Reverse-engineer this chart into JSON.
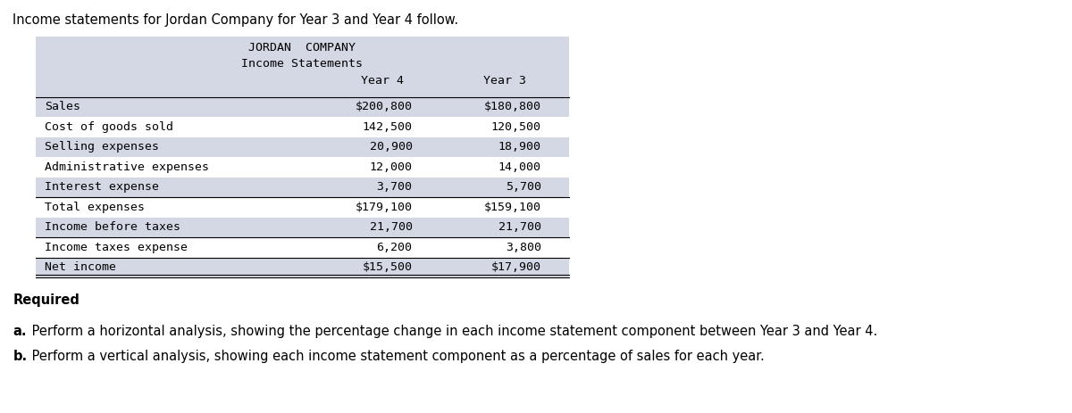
{
  "intro_text": "Income statements for Jordan Company for Year 3 and Year 4 follow.",
  "company_title": "JORDAN  COMPANY",
  "subtitle": "Income Statements",
  "col_headers": [
    "Year 4",
    "Year 3"
  ],
  "row_labels": [
    "Sales",
    "Cost of goods sold",
    "Selling expenses",
    "Administrative expenses",
    "Interest expense",
    "Total expenses",
    "Income before taxes",
    "Income taxes expense",
    "Net income"
  ],
  "year4_values": [
    "$200,800",
    "142,500",
    "20,900",
    "12,000",
    "3,700",
    "$179,100",
    "21,700",
    "6,200",
    "$15,500"
  ],
  "year3_values": [
    "$180,800",
    "120,500",
    "18,900",
    "14,000",
    "5,700",
    "$159,100",
    "21,700",
    "3,800",
    "$17,900"
  ],
  "required_text": "Required",
  "part_a_bold": "a.",
  "part_a_rest": " Perform a horizontal analysis, showing the percentage change in each income statement component between Year 3 and Year 4.",
  "part_b_bold": "b.",
  "part_b_rest": " Perform a vertical analysis, showing each income statement component as a percentage of sales for each year.",
  "table_bg_color": "#d4d8e4",
  "white_color": "#ffffff",
  "shaded_rows": [
    0,
    2,
    4,
    6,
    8
  ],
  "line_above_rows": [
    5,
    7
  ],
  "line_above_netincome_row": 8
}
